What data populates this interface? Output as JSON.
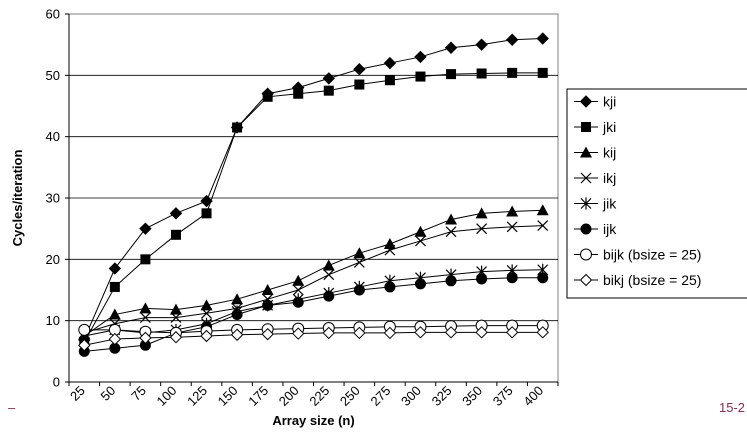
{
  "chart_data": {
    "type": "line",
    "xlabel": "Array size (n)",
    "ylabel": "Cycles/iteration",
    "categories": [
      "25",
      "50",
      "75",
      "100",
      "125",
      "150",
      "175",
      "200",
      "225",
      "250",
      "275",
      "300",
      "325",
      "350",
      "375",
      "400"
    ],
    "ylim": [
      0,
      60
    ],
    "yticks": [
      "0",
      "10",
      "20",
      "30",
      "40",
      "50",
      "60"
    ],
    "grid": "horizontal",
    "legend_position": "right",
    "series": [
      {
        "name": "kji",
        "marker": "diamond-filled",
        "values": [
          7.0,
          18.5,
          25.0,
          27.5,
          29.5,
          41.5,
          47.0,
          48.0,
          49.5,
          51.0,
          52.0,
          53.0,
          54.5,
          55.0,
          55.8,
          56.0
        ]
      },
      {
        "name": "jki",
        "marker": "square-filled",
        "values": [
          6.5,
          15.5,
          20.0,
          24.0,
          27.5,
          41.5,
          46.5,
          47.0,
          47.5,
          48.5,
          49.2,
          49.8,
          50.2,
          50.3,
          50.4,
          50.4
        ]
      },
      {
        "name": "kij",
        "marker": "triangle-filled",
        "values": [
          7.5,
          11.0,
          12.0,
          11.8,
          12.5,
          13.5,
          15.0,
          16.5,
          19.0,
          21.0,
          22.5,
          24.5,
          26.5,
          27.5,
          27.8,
          28.0
        ]
      },
      {
        "name": "ikj",
        "marker": "x",
        "values": [
          8.0,
          9.5,
          10.5,
          10.5,
          11.2,
          12.0,
          13.5,
          15.0,
          17.5,
          19.5,
          21.5,
          23.0,
          24.5,
          25.0,
          25.3,
          25.5
        ]
      },
      {
        "name": "jik",
        "marker": "asterisk",
        "values": [
          7.5,
          8.5,
          8.0,
          8.5,
          9.5,
          11.5,
          12.5,
          13.5,
          14.5,
          15.5,
          16.5,
          17.0,
          17.5,
          18.0,
          18.2,
          18.3
        ]
      },
      {
        "name": "ijk",
        "marker": "circle-filled",
        "values": [
          5.0,
          5.5,
          6.0,
          8.0,
          9.0,
          11.0,
          12.5,
          13.0,
          14.0,
          15.0,
          15.5,
          16.0,
          16.5,
          16.8,
          17.0,
          17.0
        ]
      },
      {
        "name": "bijk (bsize = 25)",
        "marker": "circle-open",
        "values": [
          8.5,
          8.5,
          8.2,
          8.0,
          8.3,
          8.5,
          8.6,
          8.7,
          8.8,
          8.9,
          9.0,
          9.0,
          9.1,
          9.2,
          9.2,
          9.2
        ]
      },
      {
        "name": "bikj (bsize = 25)",
        "marker": "diamond-open",
        "values": [
          6.0,
          7.0,
          7.2,
          7.3,
          7.5,
          7.7,
          7.8,
          7.9,
          8.0,
          8.0,
          8.0,
          8.1,
          8.1,
          8.1,
          8.1,
          8.1
        ]
      }
    ]
  },
  "footer": {
    "left_mark": "–",
    "page_number": "15-2"
  }
}
